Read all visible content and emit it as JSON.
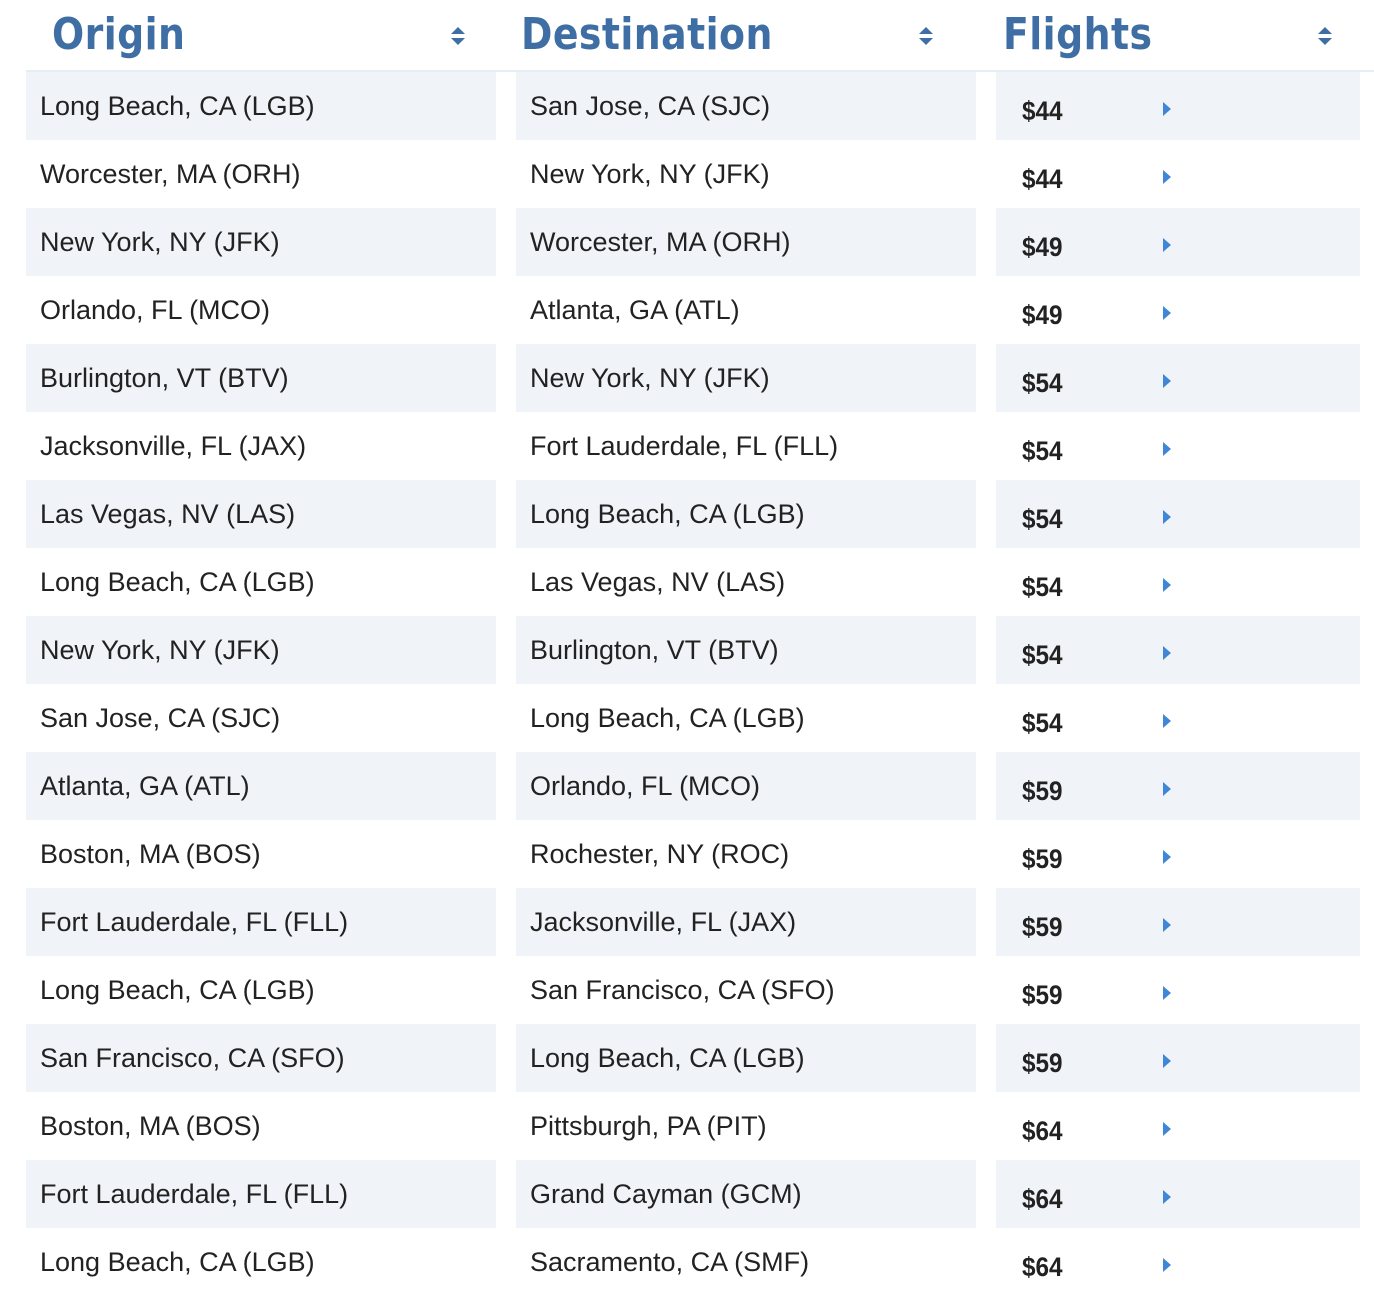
{
  "header": {
    "origin_label": "Origin",
    "destination_label": "Destination",
    "flights_label": "Flights"
  },
  "rows": [
    {
      "origin": "Long Beach, CA (LGB)",
      "destination": "San Jose, CA (SJC)",
      "price": "$44"
    },
    {
      "origin": "Worcester, MA (ORH)",
      "destination": "New York, NY (JFK)",
      "price": "$44"
    },
    {
      "origin": "New York, NY (JFK)",
      "destination": "Worcester, MA (ORH)",
      "price": "$49"
    },
    {
      "origin": "Orlando, FL (MCO)",
      "destination": "Atlanta, GA (ATL)",
      "price": "$49"
    },
    {
      "origin": "Burlington, VT (BTV)",
      "destination": "New York, NY (JFK)",
      "price": "$54"
    },
    {
      "origin": "Jacksonville, FL (JAX)",
      "destination": "Fort Lauderdale, FL (FLL)",
      "price": "$54"
    },
    {
      "origin": "Las Vegas, NV (LAS)",
      "destination": "Long Beach, CA (LGB)",
      "price": "$54"
    },
    {
      "origin": "Long Beach, CA (LGB)",
      "destination": "Las Vegas, NV (LAS)",
      "price": "$54"
    },
    {
      "origin": "New York, NY (JFK)",
      "destination": "Burlington, VT (BTV)",
      "price": "$54"
    },
    {
      "origin": "San Jose, CA (SJC)",
      "destination": "Long Beach, CA (LGB)",
      "price": "$54"
    },
    {
      "origin": "Atlanta, GA (ATL)",
      "destination": "Orlando, FL (MCO)",
      "price": "$59"
    },
    {
      "origin": "Boston, MA (BOS)",
      "destination": "Rochester, NY (ROC)",
      "price": "$59"
    },
    {
      "origin": "Fort Lauderdale, FL (FLL)",
      "destination": "Jacksonville, FL (JAX)",
      "price": "$59"
    },
    {
      "origin": "Long Beach, CA (LGB)",
      "destination": "San Francisco, CA (SFO)",
      "price": "$59"
    },
    {
      "origin": "San Francisco, CA (SFO)",
      "destination": "Long Beach, CA (LGB)",
      "price": "$59"
    },
    {
      "origin": "Boston, MA (BOS)",
      "destination": "Pittsburgh, PA (PIT)",
      "price": "$64"
    },
    {
      "origin": "Fort Lauderdale, FL (FLL)",
      "destination": "Grand Cayman (GCM)",
      "price": "$64"
    },
    {
      "origin": "Long Beach, CA (LGB)",
      "destination": "Sacramento, CA (SMF)",
      "price": "$64"
    }
  ],
  "colors": {
    "header_text": "#3f6ea5",
    "row_shade": "#f0f4f8",
    "arrow": "#3f86d6"
  },
  "icons": {
    "sort": "sort-icon",
    "row_action": "caret-right-icon"
  }
}
